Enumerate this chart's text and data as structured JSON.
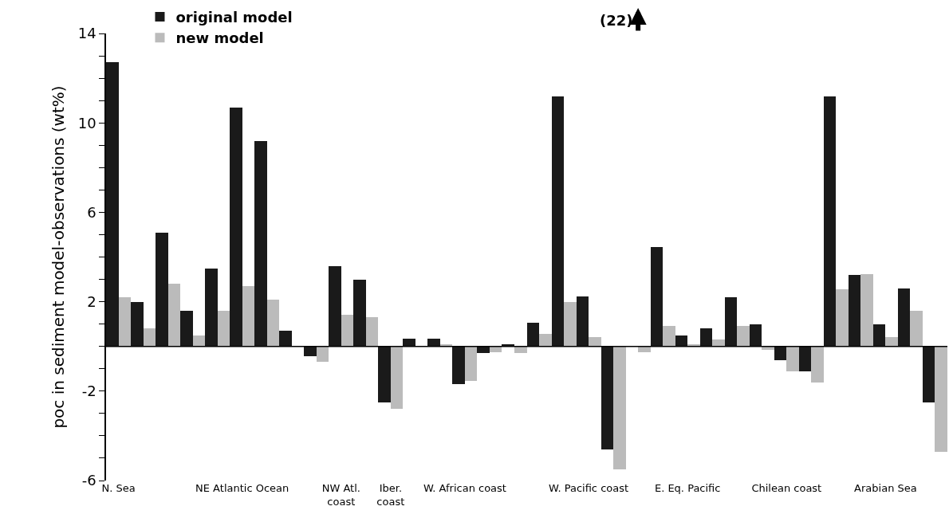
{
  "chart_data": {
    "type": "bar",
    "ylabel": "poc in sediment model-observations (wt%)",
    "categories": [
      "N. Sea",
      null,
      null,
      null,
      null,
      "NE Atlantic Ocean",
      null,
      null,
      null,
      "NW Atl.\ncoast",
      null,
      "Iber.\ncoast",
      null,
      null,
      "W. African coast",
      null,
      null,
      null,
      null,
      "W. Pacific coast",
      null,
      null,
      null,
      "E. Eq. Pacific",
      null,
      null,
      null,
      "Chilean coast",
      null,
      null,
      null,
      "Arabian Sea",
      null,
      null
    ],
    "series": [
      {
        "name": "original model",
        "color": "#1a1a1a",
        "values": [
          12.7,
          2.0,
          5.1,
          1.6,
          3.5,
          10.7,
          9.2,
          0.7,
          -0.45,
          3.6,
          3.0,
          -2.5,
          0.35,
          0.35,
          -1.7,
          -0.3,
          0.1,
          1.05,
          11.2,
          2.25,
          -4.6,
          null,
          4.45,
          0.5,
          0.8,
          2.2,
          1.0,
          -0.6,
          -1.1,
          11.2,
          3.2,
          1.0,
          2.6,
          -2.5
        ],
        "value_labels": [
          null,
          null,
          null,
          null,
          null,
          null,
          null,
          null,
          null,
          null,
          null,
          null,
          null,
          null,
          null,
          null,
          null,
          null,
          null,
          null,
          null,
          "(22)",
          null,
          null,
          null,
          null,
          null,
          null,
          null,
          null,
          null,
          null,
          null,
          null
        ]
      },
      {
        "name": "new model",
        "color": "#bbbbbb",
        "values": [
          2.2,
          0.8,
          2.8,
          0.5,
          1.6,
          2.7,
          2.1,
          0,
          -0.7,
          1.4,
          1.3,
          -2.8,
          0,
          0.1,
          -1.55,
          -0.25,
          -0.3,
          0.55,
          2.0,
          0.4,
          -5.5,
          -0.25,
          0.9,
          0.1,
          0.3,
          0.9,
          -0.15,
          -1.1,
          -1.6,
          2.55,
          3.25,
          0.4,
          1.6,
          -4.7
        ]
      }
    ],
    "ref_lines": [
      {
        "axis": "y",
        "value": 0,
        "color": "#000000"
      }
    ],
    "ylim": [
      -6,
      14
    ],
    "yticks": [
      -6,
      {
        "value": -5,
        "label": null
      },
      {
        "value": -4,
        "label": null
      },
      {
        "value": -3,
        "label": null
      },
      -2,
      {
        "value": -1,
        "label": null
      },
      {
        "value": 0,
        "label": null
      },
      {
        "value": 1,
        "label": null
      },
      2,
      {
        "value": 3,
        "label": null
      },
      {
        "value": 4,
        "label": null
      },
      {
        "value": 5,
        "label": null
      },
      6,
      {
        "value": 7,
        "label": null
      },
      {
        "value": 8,
        "label": null
      },
      {
        "value": 9,
        "label": null
      },
      10,
      {
        "value": 11,
        "label": null
      },
      {
        "value": 12,
        "label": null
      },
      {
        "value": 13,
        "label": null
      },
      14
    ],
    "grid": false,
    "legend": "top left"
  }
}
